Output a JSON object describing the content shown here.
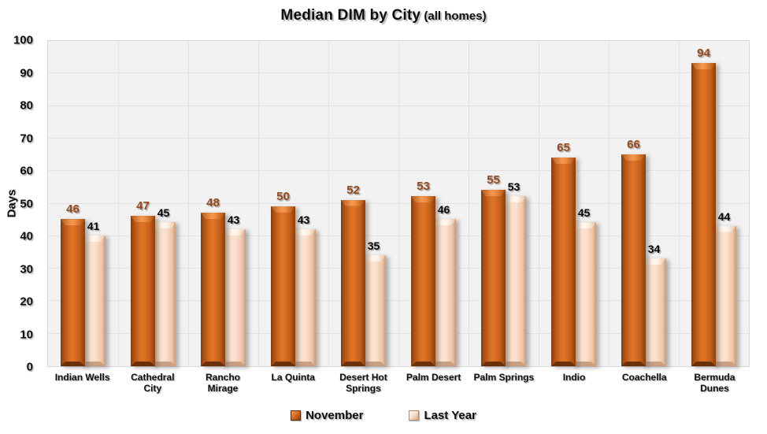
{
  "title": {
    "main": "Median DIM by City",
    "suffix": " (all homes)"
  },
  "y_axis": {
    "title": "Days",
    "ticks": [
      0,
      10,
      20,
      30,
      40,
      50,
      60,
      70,
      80,
      90,
      100
    ]
  },
  "x_axis": {
    "label_lines": [
      [
        "Indian Wells"
      ],
      [
        "Cathedral",
        "City"
      ],
      [
        "Rancho",
        "Mirage"
      ],
      [
        "La Quinta"
      ],
      [
        "Desert Hot",
        "Springs"
      ],
      [
        "Palm Desert"
      ],
      [
        "Palm Springs"
      ],
      [
        "Indio"
      ],
      [
        "Coachella"
      ],
      [
        "Bermuda",
        "Dunes"
      ]
    ]
  },
  "legend": {
    "items": [
      {
        "label": "November",
        "color": "#C96218"
      },
      {
        "label": "Last Year",
        "color": "#FBE2CE"
      }
    ]
  },
  "colors": {
    "november_bar": "#C96218",
    "last_year_bar": "#FBE2CE",
    "november_value_label": "#96491B",
    "last_year_value_label": "#000000",
    "plot_background": "#F2F2F2",
    "gridline": "#E2E2E2"
  },
  "chart_data": {
    "type": "bar",
    "title": "Median DIM by City (all homes)",
    "categories": [
      "Indian Wells",
      "Cathedral City",
      "Rancho Mirage",
      "La Quinta",
      "Desert Hot Springs",
      "Palm Desert",
      "Palm Springs",
      "Indio",
      "Coachella",
      "Bermuda Dunes"
    ],
    "series": [
      {
        "name": "November",
        "color": "#C96218",
        "values": [
          46,
          47,
          48,
          50,
          52,
          53,
          55,
          65,
          66,
          94
        ]
      },
      {
        "name": "Last Year",
        "color": "#FBE2CE",
        "values": [
          41,
          45,
          43,
          43,
          35,
          46,
          53,
          45,
          34,
          44
        ]
      }
    ],
    "xlabel": "",
    "ylabel": "Days",
    "ylim": [
      0,
      100
    ],
    "ytick_step": 10,
    "grid": true,
    "legend_position": "bottom"
  }
}
